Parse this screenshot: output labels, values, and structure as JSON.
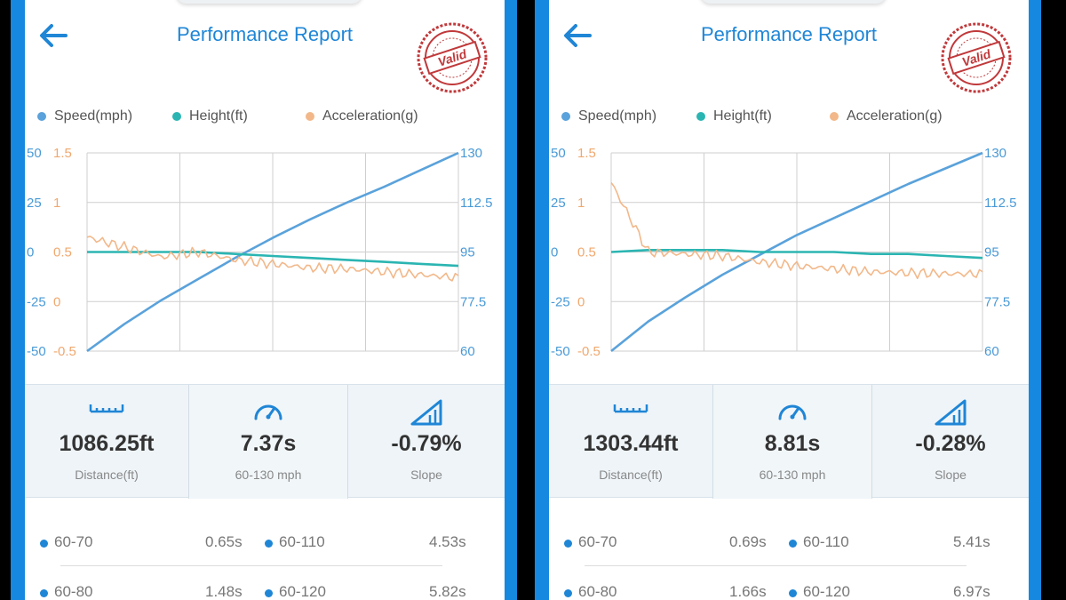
{
  "colors": {
    "speed": "#5aa2db",
    "height": "#2bb5b2",
    "acceleration": "#f2b88a",
    "accent": "#1f86d6",
    "stamp": "#c0393b"
  },
  "icons": {
    "back": "arrow-left-icon",
    "stamp": "valid-stamp",
    "distance": "ruler-icon",
    "time": "speedometer-icon",
    "slope": "slope-icon"
  },
  "panels": [
    {
      "title": "Performance Report",
      "stamp_text": "Valid",
      "legend": [
        "Speed(mph)",
        "Height(ft)",
        "Acceleration(g)"
      ],
      "axis_height_ticks": [
        "50",
        "25",
        "0",
        "-25",
        "-50"
      ],
      "axis_accel_ticks": [
        "1.5",
        "1",
        "0.5",
        "0",
        "-0.5"
      ],
      "axis_speed_ticks": [
        "130",
        "112.5",
        "95",
        "77.5",
        "60"
      ],
      "stats": [
        {
          "value": "1086.25ft",
          "label": "Distance(ft)"
        },
        {
          "value": "7.37s",
          "label": "60-130 mph"
        },
        {
          "value": "-0.79%",
          "label": "Slope"
        }
      ],
      "splits": [
        {
          "range_a": "60-70",
          "time_a": "0.65s",
          "range_b": "60-110",
          "time_b": "4.53s"
        },
        {
          "range_a": "60-80",
          "time_a": "1.48s",
          "range_b": "60-120",
          "time_b": "5.82s"
        }
      ]
    },
    {
      "title": "Performance Report",
      "stamp_text": "Valid",
      "legend": [
        "Speed(mph)",
        "Height(ft)",
        "Acceleration(g)"
      ],
      "axis_height_ticks": [
        "50",
        "25",
        "0",
        "-25",
        "-50"
      ],
      "axis_accel_ticks": [
        "1.5",
        "1",
        "0.5",
        "0",
        "-0.5"
      ],
      "axis_speed_ticks": [
        "130",
        "112.5",
        "95",
        "77.5",
        "60"
      ],
      "stats": [
        {
          "value": "1303.44ft",
          "label": "Distance(ft)"
        },
        {
          "value": "8.81s",
          "label": "60-130 mph"
        },
        {
          "value": "-0.28%",
          "label": "Slope"
        }
      ],
      "splits": [
        {
          "range_a": "60-70",
          "time_a": "0.69s",
          "range_b": "60-110",
          "time_b": "5.41s"
        },
        {
          "range_a": "60-80",
          "time_a": "1.66s",
          "range_b": "60-120",
          "time_b": "6.97s"
        }
      ]
    }
  ],
  "chart_data": [
    {
      "type": "line",
      "x": [
        0,
        0.1,
        0.2,
        0.3,
        0.4,
        0.5,
        0.6,
        0.7,
        0.8,
        0.9,
        1.0
      ],
      "series": [
        {
          "name": "Speed(mph)",
          "axis": "right",
          "ylim": [
            60,
            130
          ],
          "values": [
            60,
            69.5,
            78,
            85.5,
            93,
            100,
            106.5,
            112.5,
            118,
            124,
            130
          ]
        },
        {
          "name": "Height(ft)",
          "axis": "left",
          "ylim": [
            -50,
            50
          ],
          "values": [
            0,
            0,
            0,
            0,
            -1,
            -2,
            -3,
            -4,
            -5,
            -6,
            -7
          ]
        },
        {
          "name": "Acceleration(g)",
          "axis": "left2",
          "ylim": [
            -0.5,
            1.5
          ],
          "values": [
            0.65,
            0.55,
            0.45,
            0.5,
            0.42,
            0.38,
            0.34,
            0.33,
            0.3,
            0.27,
            0.24
          ]
        }
      ],
      "axis_left_ticks": [
        "50",
        "25",
        "0",
        "-25",
        "-50"
      ],
      "axis_left2_ticks": [
        "1.5",
        "1",
        "0.5",
        "0",
        "-0.5"
      ],
      "axis_right_ticks": [
        "130",
        "112.5",
        "95",
        "77.5",
        "60"
      ],
      "grid": true,
      "legend_position": "top"
    },
    {
      "type": "line",
      "x": [
        0,
        0.1,
        0.2,
        0.3,
        0.4,
        0.5,
        0.6,
        0.7,
        0.8,
        0.9,
        1.0
      ],
      "series": [
        {
          "name": "Speed(mph)",
          "axis": "right",
          "ylim": [
            60,
            130
          ],
          "values": [
            60,
            70.5,
            79,
            87,
            94,
            101,
            107,
            113,
            119,
            124.5,
            130
          ]
        },
        {
          "name": "Height(ft)",
          "axis": "left",
          "ylim": [
            -50,
            50
          ],
          "values": [
            0,
            1,
            1,
            1,
            0,
            0,
            0,
            -1,
            -1,
            -2,
            -3
          ]
        },
        {
          "name": "Acceleration(g)",
          "axis": "left2",
          "ylim": [
            -0.5,
            1.5
          ],
          "values": [
            1.2,
            0.5,
            0.48,
            0.46,
            0.4,
            0.36,
            0.33,
            0.3,
            0.29,
            0.28,
            0.28
          ]
        }
      ],
      "axis_left_ticks": [
        "50",
        "25",
        "0",
        "-25",
        "-50"
      ],
      "axis_left2_ticks": [
        "1.5",
        "1",
        "0.5",
        "0",
        "-0.5"
      ],
      "axis_right_ticks": [
        "130",
        "112.5",
        "95",
        "77.5",
        "60"
      ],
      "grid": true,
      "legend_position": "top"
    }
  ]
}
